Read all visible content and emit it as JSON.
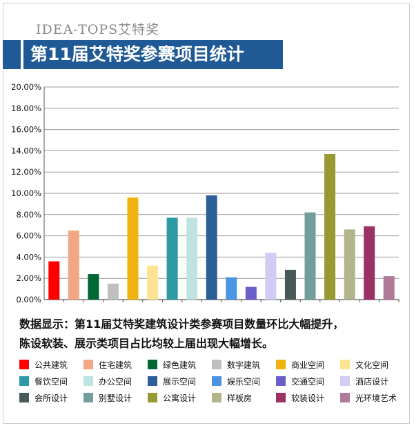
{
  "header": {
    "brand": "IDEA-TOPS艾特奖",
    "title": "第11届艾特奖参赛项目统计"
  },
  "note": {
    "line1": "数据显示：第11届艾特奖建筑设计类参赛项目数量环比大幅提升，",
    "line2": "陈设软装、展示类项目占比均较上届出现大幅增长。"
  },
  "chart_data": {
    "type": "bar",
    "title": "",
    "xlabel": "",
    "ylabel": "",
    "ylim": [
      0,
      20
    ],
    "yticks": [
      "0.00%",
      "2.00%",
      "4.00%",
      "6.00%",
      "8.00%",
      "10.00%",
      "12.00%",
      "14.00%",
      "16.00%",
      "18.00%",
      "20.00%"
    ],
    "grid": true,
    "legend_position": "bottom",
    "categories": [
      "公共建筑",
      "住宅建筑",
      "绿色建筑",
      "数字建筑",
      "商业空间",
      "文化空间",
      "餐饮空间",
      "办公空间",
      "展示空间",
      "娱乐空间",
      "交通空间",
      "酒店设计",
      "会所设计",
      "别墅设计",
      "公寓设计",
      "样板房",
      "软装设计",
      "光环境艺术"
    ],
    "values": [
      3.6,
      6.5,
      2.4,
      1.5,
      9.6,
      3.2,
      7.7,
      7.7,
      9.8,
      2.1,
      1.2,
      4.4,
      2.8,
      8.2,
      13.7,
      6.6,
      6.9,
      2.2
    ],
    "colors": [
      "#ff0000",
      "#f2a784",
      "#006633",
      "#bfbfbf",
      "#f0b30f",
      "#fde493",
      "#2b9aa5",
      "#bfe3e1",
      "#2c5f98",
      "#4a94e2",
      "#6a5ec8",
      "#d0ccf5",
      "#485a57",
      "#6f9e9b",
      "#999933",
      "#b2b48c",
      "#9b3264",
      "#b07b99"
    ]
  }
}
